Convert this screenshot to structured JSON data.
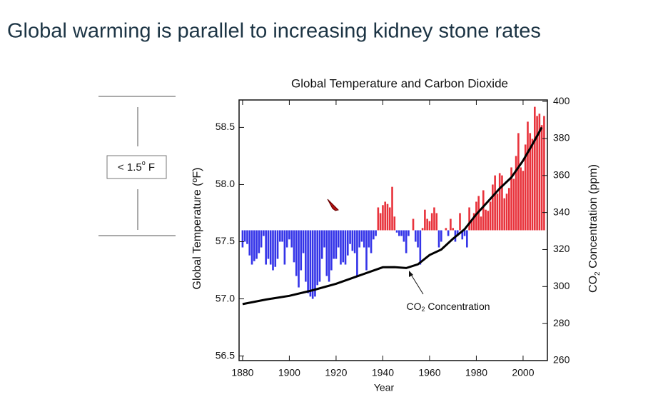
{
  "slide_title": "Global warming is parallel to increasing kidney stone rates",
  "side_note": {
    "parts": [
      "< 1.5",
      "o",
      " F"
    ]
  },
  "chart_data": {
    "type": "combo",
    "title": "Global Temperature and Carbon Dioxide",
    "xlabel": "Year",
    "ylabel": "Global Temperature (ºF)",
    "y2label": [
      "CO",
      "2",
      " Concentration (ppm)"
    ],
    "annotation": [
      "CO",
      "2",
      " Concentration"
    ],
    "xlim": [
      1878.5,
      2010.4
    ],
    "xticks": [
      1880,
      1900,
      1920,
      1940,
      1960,
      1980,
      2000
    ],
    "ylim": [
      56.46,
      58.74
    ],
    "yticks": [
      56.5,
      {
        "value": 57,
        "label": "57.0"
      },
      57.5,
      {
        "value": 58,
        "label": "58.0"
      },
      58.5
    ],
    "y2lim": [
      260,
      400.8
    ],
    "y2ticks": [
      260,
      280,
      300,
      320,
      340,
      360,
      380,
      400
    ],
    "bars": {
      "base": 57.6,
      "color_above": "#e8333c",
      "color_below": "#3434e8",
      "x": [
        1880,
        1881,
        1882,
        1883,
        1884,
        1885,
        1886,
        1887,
        1888,
        1889,
        1890,
        1891,
        1892,
        1893,
        1894,
        1895,
        1896,
        1897,
        1898,
        1899,
        1900,
        1901,
        1902,
        1903,
        1904,
        1905,
        1906,
        1907,
        1908,
        1909,
        1910,
        1911,
        1912,
        1913,
        1914,
        1915,
        1916,
        1917,
        1918,
        1919,
        1920,
        1921,
        1922,
        1923,
        1924,
        1925,
        1926,
        1927,
        1928,
        1929,
        1930,
        1931,
        1932,
        1933,
        1934,
        1935,
        1936,
        1937,
        1938,
        1939,
        1940,
        1941,
        1942,
        1943,
        1944,
        1945,
        1946,
        1947,
        1948,
        1949,
        1950,
        1951,
        1952,
        1953,
        1954,
        1955,
        1956,
        1957,
        1958,
        1959,
        1960,
        1961,
        1962,
        1963,
        1964,
        1965,
        1966,
        1967,
        1968,
        1969,
        1970,
        1971,
        1972,
        1973,
        1974,
        1975,
        1976,
        1977,
        1978,
        1979,
        1980,
        1981,
        1982,
        1983,
        1984,
        1985,
        1986,
        1987,
        1988,
        1989,
        1990,
        1991,
        1992,
        1993,
        1994,
        1995,
        1996,
        1997,
        1998,
        1999,
        2000,
        2001,
        2002,
        2003,
        2004,
        2005,
        2006,
        2007,
        2008,
        2009
      ],
      "values": [
        57.45,
        57.5,
        57.48,
        57.38,
        57.3,
        57.33,
        57.35,
        57.4,
        57.45,
        57.55,
        57.3,
        57.35,
        57.3,
        57.25,
        57.28,
        57.35,
        57.5,
        57.5,
        57.3,
        57.45,
        57.52,
        57.45,
        57.32,
        57.2,
        57.1,
        57.25,
        57.4,
        57.15,
        57.05,
        57.02,
        57.0,
        57.02,
        57.12,
        57.15,
        57.35,
        57.45,
        57.2,
        57.15,
        57.25,
        57.35,
        57.35,
        57.45,
        57.3,
        57.32,
        57.3,
        57.38,
        57.48,
        57.42,
        57.4,
        57.2,
        57.45,
        57.5,
        57.45,
        57.25,
        57.45,
        57.4,
        57.52,
        57.55,
        57.8,
        57.75,
        57.82,
        57.85,
        57.83,
        57.8,
        57.98,
        57.72,
        57.58,
        57.55,
        57.55,
        57.5,
        57.4,
        57.55,
        57.6,
        57.7,
        57.5,
        57.45,
        57.3,
        57.62,
        57.78,
        57.7,
        57.68,
        57.75,
        57.8,
        57.75,
        57.45,
        57.5,
        57.6,
        57.62,
        57.55,
        57.7,
        57.62,
        57.5,
        57.55,
        57.75,
        57.52,
        57.55,
        57.45,
        57.8,
        57.68,
        57.75,
        57.85,
        57.9,
        57.72,
        57.95,
        57.78,
        57.77,
        57.85,
        58.0,
        58.08,
        57.92,
        58.1,
        58.08,
        57.88,
        57.92,
        57.97,
        58.15,
        58.05,
        58.25,
        58.45,
        58.15,
        58.12,
        58.35,
        58.55,
        58.45,
        58.4,
        58.68,
        58.6,
        58.62,
        58.52,
        58.6
      ]
    },
    "line": {
      "axis": "y2",
      "color": "#000000",
      "x": [
        1880,
        1890,
        1900,
        1910,
        1920,
        1930,
        1940,
        1945,
        1950,
        1955,
        1960,
        1965,
        1970,
        1975,
        1980,
        1985,
        1990,
        1995,
        2000,
        2005,
        2008
      ],
      "values": [
        290.5,
        293,
        295,
        298,
        301.5,
        306,
        310.4,
        310.5,
        310,
        312,
        317,
        320,
        325.8,
        331,
        339,
        346,
        353,
        359,
        368,
        379,
        386
      ]
    }
  }
}
